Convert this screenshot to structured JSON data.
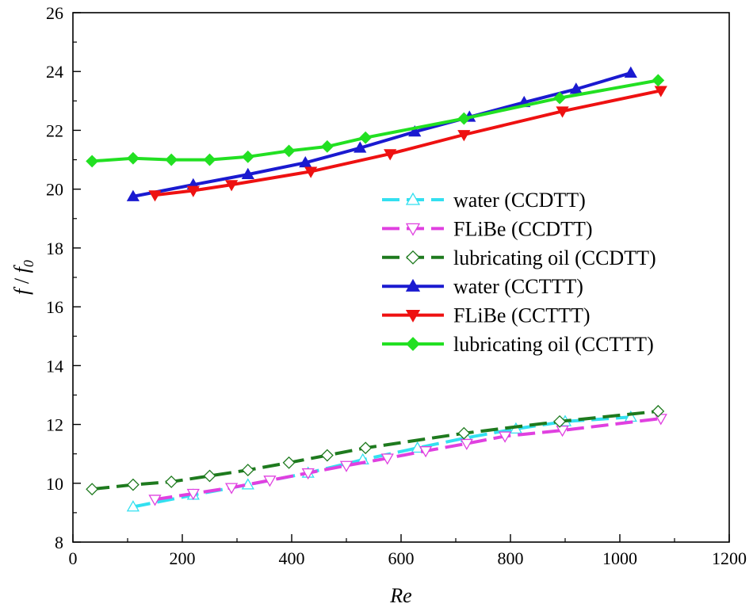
{
  "chart_data": {
    "type": "line",
    "xlabel": "Re",
    "ylabel_main": "f",
    "ylabel_sep": " / ",
    "ylabel_base": "f",
    "ylabel_sub": "0",
    "xlim": [
      0,
      1200
    ],
    "ylim": [
      8,
      26
    ],
    "xticks": [
      0,
      200,
      400,
      600,
      800,
      1000,
      1200
    ],
    "yticks": [
      8,
      10,
      12,
      14,
      16,
      18,
      20,
      22,
      24,
      26
    ],
    "legend_position": "right-middle",
    "series": [
      {
        "name": "water (CCDTT)",
        "color": "#33e0f0",
        "dash": "dashed",
        "marker": "triangle-up",
        "filled": false,
        "x": [
          110,
          220,
          320,
          430,
          530,
          630,
          720,
          810,
          900,
          1020
        ],
        "y": [
          9.2,
          9.6,
          9.95,
          10.35,
          10.8,
          11.2,
          11.55,
          11.85,
          12.1,
          12.25
        ]
      },
      {
        "name": "FLiBe (CCDTT)",
        "color": "#e040e0",
        "dash": "dashed",
        "marker": "triangle-down",
        "filled": false,
        "x": [
          150,
          220,
          290,
          360,
          430,
          500,
          575,
          645,
          720,
          790,
          895,
          1075
        ],
        "y": [
          9.45,
          9.65,
          9.85,
          10.1,
          10.35,
          10.6,
          10.85,
          11.1,
          11.35,
          11.6,
          11.8,
          12.2
        ]
      },
      {
        "name": "lubricating oil (CCDTT)",
        "color": "#1e7a1e",
        "dash": "dashed",
        "marker": "diamond",
        "filled": false,
        "x": [
          35,
          110,
          180,
          250,
          320,
          395,
          465,
          535,
          715,
          890,
          1070
        ],
        "y": [
          9.8,
          9.95,
          10.05,
          10.25,
          10.45,
          10.7,
          10.95,
          11.2,
          11.7,
          12.1,
          12.45
        ]
      },
      {
        "name": "water (CCTTT)",
        "color": "#1a1ad0",
        "dash": "solid",
        "marker": "triangle-up",
        "filled": true,
        "x": [
          110,
          220,
          320,
          425,
          525,
          625,
          725,
          825,
          920,
          1020
        ],
        "y": [
          19.75,
          20.15,
          20.5,
          20.9,
          21.4,
          21.95,
          22.45,
          22.95,
          23.4,
          23.95
        ]
      },
      {
        "name": "FLiBe (CCTTT)",
        "color": "#ee1111",
        "dash": "solid",
        "marker": "triangle-down",
        "filled": true,
        "x": [
          150,
          220,
          290,
          435,
          580,
          715,
          895,
          1075
        ],
        "y": [
          19.8,
          19.95,
          20.15,
          20.6,
          21.2,
          21.85,
          22.65,
          23.35
        ]
      },
      {
        "name": "lubricating oil (CCTTT)",
        "color": "#22e022",
        "dash": "solid",
        "marker": "diamond",
        "filled": true,
        "x": [
          35,
          110,
          180,
          250,
          320,
          395,
          465,
          535,
          715,
          890,
          1070
        ],
        "y": [
          20.95,
          21.05,
          21.0,
          21.0,
          21.1,
          21.3,
          21.45,
          21.75,
          22.4,
          23.1,
          23.7
        ]
      }
    ]
  }
}
